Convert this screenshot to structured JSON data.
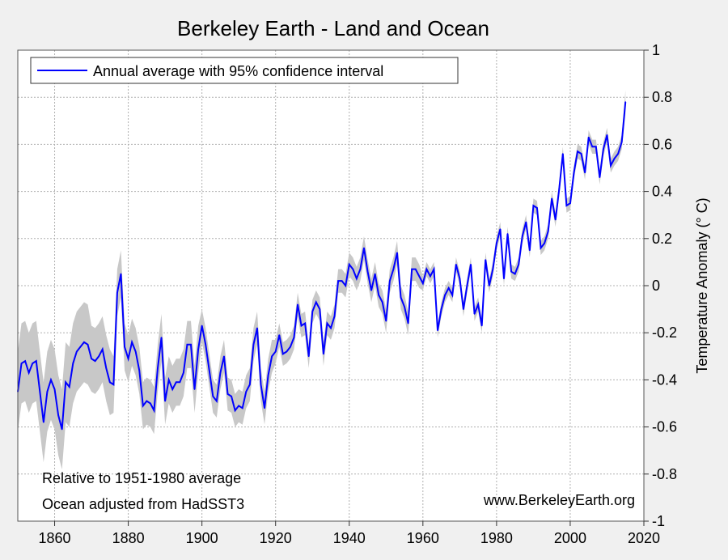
{
  "chart_data": {
    "type": "line",
    "title": "Berkeley Earth - Land and Ocean",
    "ylabel": "Temperature Anomaly (° C)",
    "xlabel": "",
    "xlim": [
      1850,
      2020
    ],
    "ylim": [
      -1,
      1
    ],
    "x_ticks": [
      1860,
      1880,
      1900,
      1920,
      1940,
      1960,
      1980,
      2000,
      2020
    ],
    "y_ticks": [
      -1,
      -0.8,
      -0.6,
      -0.4,
      -0.2,
      0,
      0.2,
      0.4,
      0.6,
      0.8,
      1
    ],
    "y_tick_labels": [
      "-1",
      "-0.8",
      "-0.6",
      "-0.4",
      "-0.2",
      "0",
      "0.2",
      "0.4",
      "0.6",
      "0.8",
      "1"
    ],
    "y_axis_side": "right",
    "grid": true,
    "legend": {
      "placement": "top-left",
      "entry": "Annual average with 95% confidence interval"
    },
    "annotations": {
      "bottom_left_1": "Relative to 1951-1980 average",
      "bottom_left_2": "Ocean adjusted from HadSST3",
      "bottom_right": "www.BerkeleyEarth.org"
    },
    "colors": {
      "line": "#0000ff",
      "band": "#c8c8c8",
      "background": "#f0f0f0",
      "plot": "#ffffff"
    },
    "series": [
      {
        "name": "Annual average with 95% confidence interval",
        "x_start": 1850,
        "values": [
          -0.45,
          -0.33,
          -0.32,
          -0.37,
          -0.33,
          -0.32,
          -0.45,
          -0.58,
          -0.45,
          -0.4,
          -0.44,
          -0.55,
          -0.61,
          -0.41,
          -0.43,
          -0.33,
          -0.28,
          -0.26,
          -0.24,
          -0.25,
          -0.31,
          -0.32,
          -0.3,
          -0.27,
          -0.35,
          -0.41,
          -0.42,
          -0.03,
          0.05,
          -0.26,
          -0.31,
          -0.24,
          -0.28,
          -0.36,
          -0.51,
          -0.49,
          -0.5,
          -0.53,
          -0.35,
          -0.22,
          -0.49,
          -0.4,
          -0.44,
          -0.41,
          -0.41,
          -0.37,
          -0.25,
          -0.25,
          -0.44,
          -0.27,
          -0.17,
          -0.25,
          -0.36,
          -0.47,
          -0.49,
          -0.37,
          -0.3,
          -0.46,
          -0.47,
          -0.53,
          -0.51,
          -0.52,
          -0.45,
          -0.42,
          -0.25,
          -0.18,
          -0.42,
          -0.52,
          -0.38,
          -0.3,
          -0.28,
          -0.21,
          -0.29,
          -0.28,
          -0.26,
          -0.22,
          -0.08,
          -0.17,
          -0.16,
          -0.3,
          -0.11,
          -0.07,
          -0.1,
          -0.29,
          -0.16,
          -0.18,
          -0.13,
          0.02,
          0.02,
          0.0,
          0.09,
          0.07,
          0.03,
          0.07,
          0.16,
          0.06,
          -0.02,
          0.05,
          -0.04,
          -0.07,
          -0.15,
          0.02,
          0.07,
          0.14,
          -0.05,
          -0.09,
          -0.16,
          0.07,
          0.07,
          0.04,
          0.01,
          0.07,
          0.04,
          0.07,
          -0.19,
          -0.1,
          -0.04,
          -0.01,
          -0.04,
          0.09,
          0.03,
          -0.1,
          0.0,
          0.09,
          -0.12,
          -0.08,
          -0.17,
          0.11,
          0.0,
          0.07,
          0.18,
          0.24,
          0.03,
          0.22,
          0.06,
          0.05,
          0.09,
          0.21,
          0.27,
          0.15,
          0.34,
          0.33,
          0.16,
          0.18,
          0.23,
          0.37,
          0.28,
          0.41,
          0.56,
          0.34,
          0.35,
          0.48,
          0.57,
          0.56,
          0.48,
          0.63,
          0.59,
          0.59,
          0.46,
          0.58,
          0.64,
          0.51,
          0.54,
          0.56,
          0.61,
          0.78
        ],
        "ci_halfwidth": [
          0.17,
          0.17,
          0.17,
          0.17,
          0.17,
          0.17,
          0.17,
          0.17,
          0.17,
          0.17,
          0.17,
          0.17,
          0.17,
          0.17,
          0.17,
          0.17,
          0.17,
          0.17,
          0.17,
          0.17,
          0.14,
          0.14,
          0.14,
          0.14,
          0.14,
          0.14,
          0.12,
          0.1,
          0.1,
          0.1,
          0.1,
          0.1,
          0.1,
          0.1,
          0.1,
          0.1,
          0.1,
          0.1,
          0.1,
          0.1,
          0.1,
          0.1,
          0.1,
          0.1,
          0.1,
          0.1,
          0.1,
          0.1,
          0.1,
          0.1,
          0.07,
          0.07,
          0.07,
          0.07,
          0.07,
          0.07,
          0.07,
          0.07,
          0.07,
          0.07,
          0.07,
          0.07,
          0.07,
          0.07,
          0.07,
          0.07,
          0.07,
          0.07,
          0.07,
          0.07,
          0.05,
          0.05,
          0.05,
          0.05,
          0.05,
          0.05,
          0.05,
          0.05,
          0.05,
          0.05,
          0.05,
          0.05,
          0.05,
          0.05,
          0.05,
          0.05,
          0.05,
          0.05,
          0.05,
          0.05,
          0.05,
          0.05,
          0.05,
          0.05,
          0.05,
          0.05,
          0.05,
          0.05,
          0.05,
          0.05,
          0.05,
          0.05,
          0.05,
          0.05,
          0.05,
          0.05,
          0.05,
          0.05,
          0.05,
          0.05,
          0.03,
          0.03,
          0.03,
          0.03,
          0.03,
          0.03,
          0.03,
          0.03,
          0.03,
          0.03,
          0.03,
          0.03,
          0.03,
          0.03,
          0.03,
          0.03,
          0.03,
          0.03,
          0.03,
          0.03,
          0.03,
          0.03,
          0.03,
          0.03,
          0.03,
          0.03,
          0.03,
          0.03,
          0.03,
          0.03,
          0.03,
          0.03,
          0.03,
          0.03,
          0.03,
          0.03,
          0.03,
          0.03,
          0.03,
          0.03,
          0.03,
          0.03,
          0.03,
          0.03,
          0.03,
          0.03,
          0.03,
          0.03,
          0.03,
          0.03,
          0.03,
          0.03,
          0.03,
          0.03,
          0.03,
          0.05
        ]
      }
    ]
  }
}
